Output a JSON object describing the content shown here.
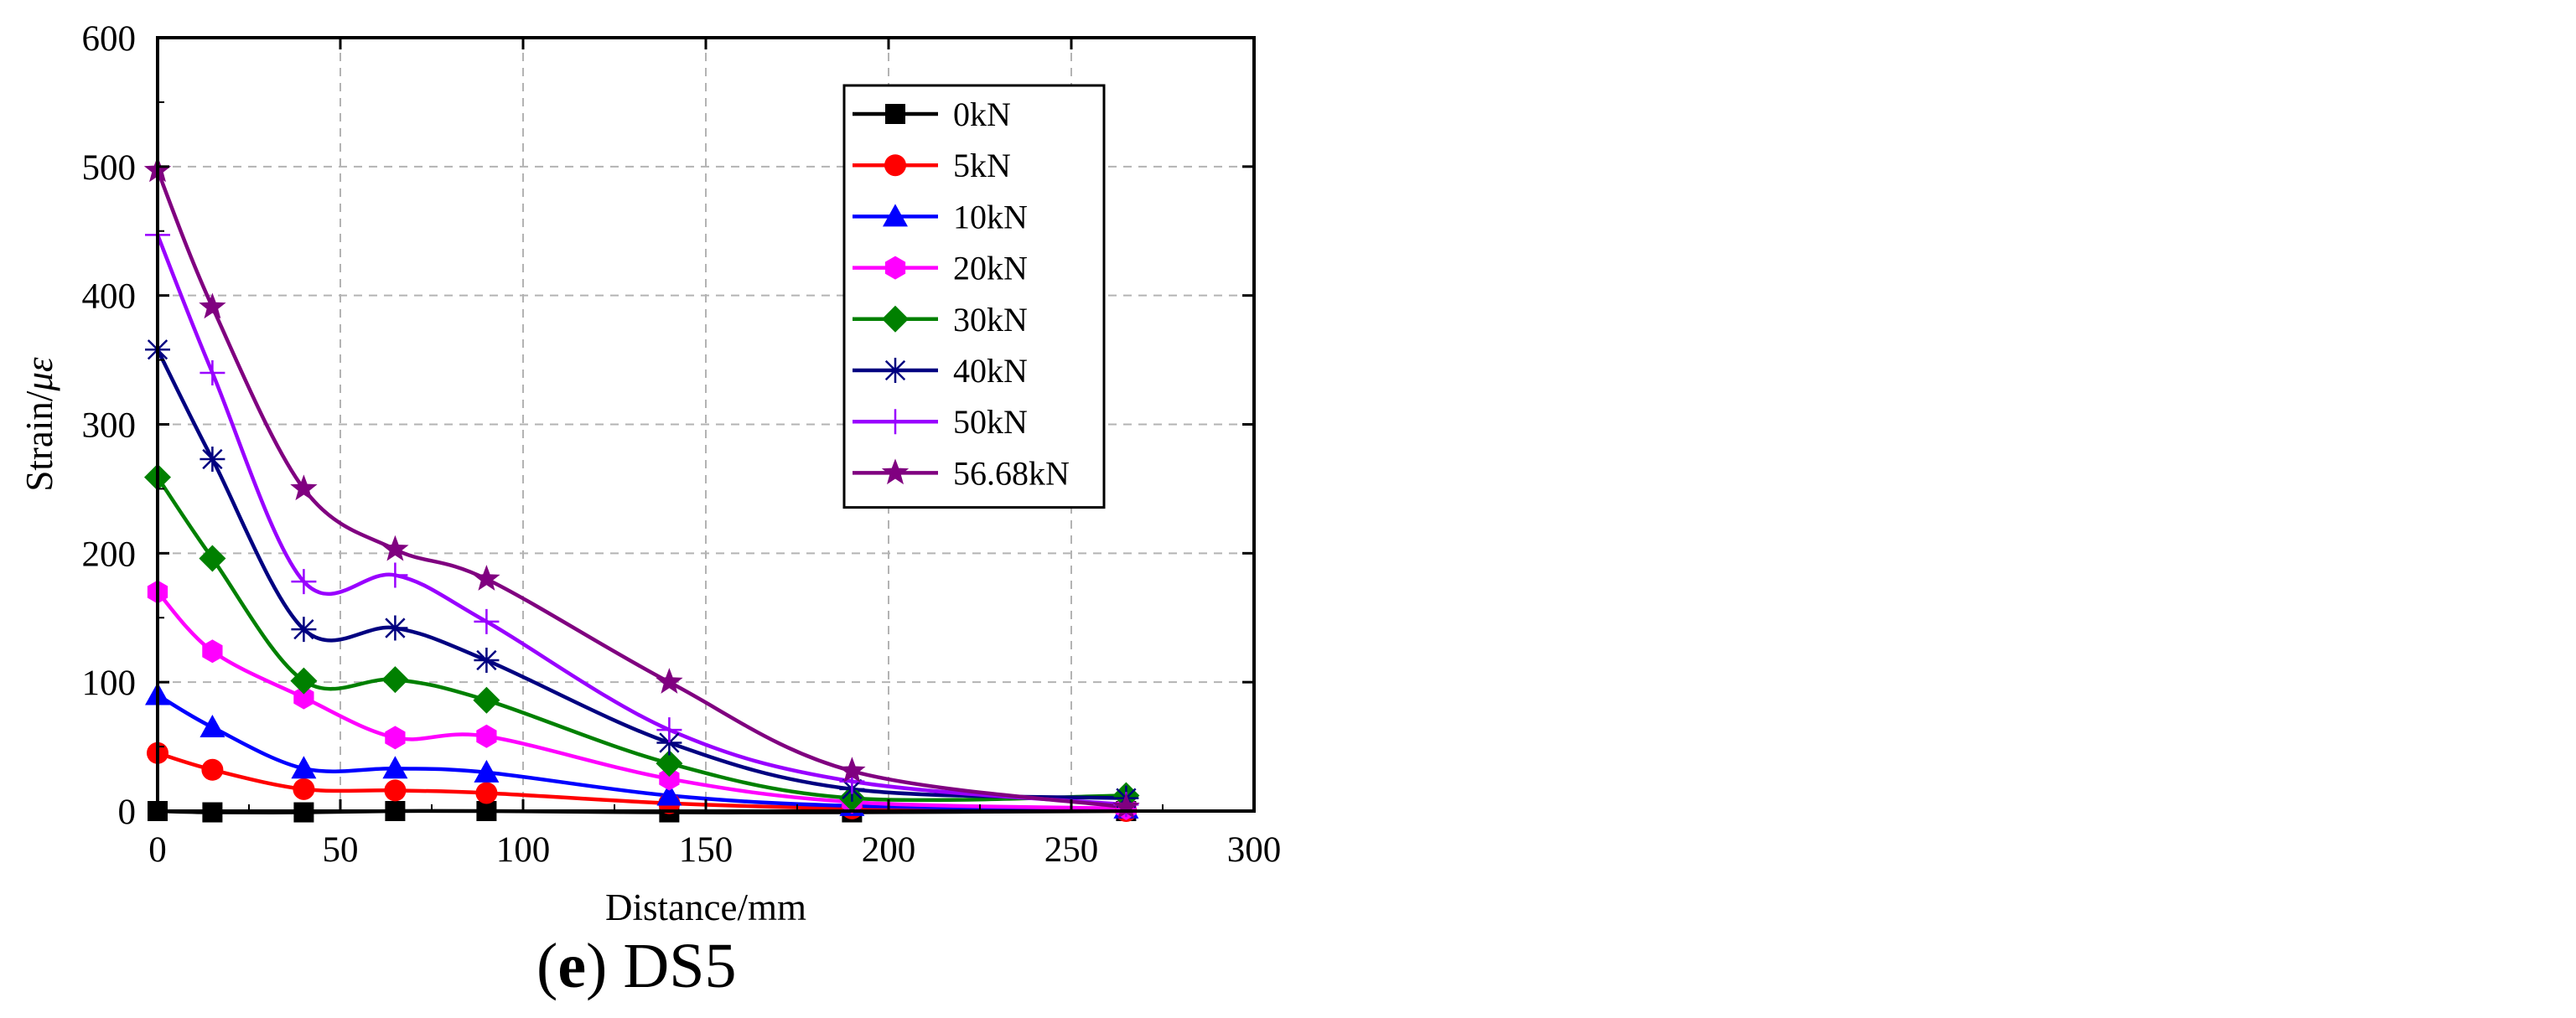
{
  "chart_data": {
    "type": "line",
    "xlabel": "Distance/mm",
    "ylabel_text": "Strain/",
    "ylabel_unit": "με",
    "xlim": [
      0,
      300
    ],
    "ylim": [
      0,
      600
    ],
    "xticks": [
      0,
      50,
      100,
      150,
      200,
      250,
      300
    ],
    "yticks": [
      0,
      100,
      200,
      300,
      400,
      500,
      600
    ],
    "grid": true,
    "legend_position": "top-right",
    "x": [
      0,
      15,
      40,
      65,
      90,
      140,
      190,
      265
    ],
    "series": [
      {
        "name": "0kN",
        "color": "#000000",
        "marker": "square",
        "values": [
          0,
          -1,
          -1,
          0,
          0,
          -1,
          -1,
          0
        ]
      },
      {
        "name": "5kN",
        "color": "#ff0000",
        "marker": "circle",
        "values": [
          45,
          32,
          17,
          16,
          14,
          6,
          2,
          0
        ]
      },
      {
        "name": "10kN",
        "color": "#0000ff",
        "marker": "triangle",
        "values": [
          90,
          65,
          33,
          33,
          30,
          12,
          4,
          2
        ]
      },
      {
        "name": "20kN",
        "color": "#ff00ff",
        "marker": "hexagon",
        "values": [
          170,
          124,
          88,
          57,
          58,
          25,
          7,
          2
        ]
      },
      {
        "name": "30kN",
        "color": "#008000",
        "marker": "diamond",
        "values": [
          259,
          196,
          101,
          102,
          86,
          37,
          10,
          12
        ]
      },
      {
        "name": "40kN",
        "color": "#000080",
        "marker": "asterisk",
        "values": [
          358,
          273,
          141,
          142,
          117,
          53,
          17,
          10
        ]
      },
      {
        "name": "50kN",
        "color": "#9900ff",
        "marker": "plus",
        "values": [
          447,
          340,
          178,
          183,
          147,
          63,
          23,
          5
        ]
      },
      {
        "name": "56.68kN",
        "color": "#800080",
        "marker": "star",
        "values": [
          497,
          391,
          250,
          203,
          180,
          100,
          31,
          3
        ]
      }
    ]
  },
  "caption": {
    "panel_letter": "e",
    "panel_name": "DS5"
  }
}
